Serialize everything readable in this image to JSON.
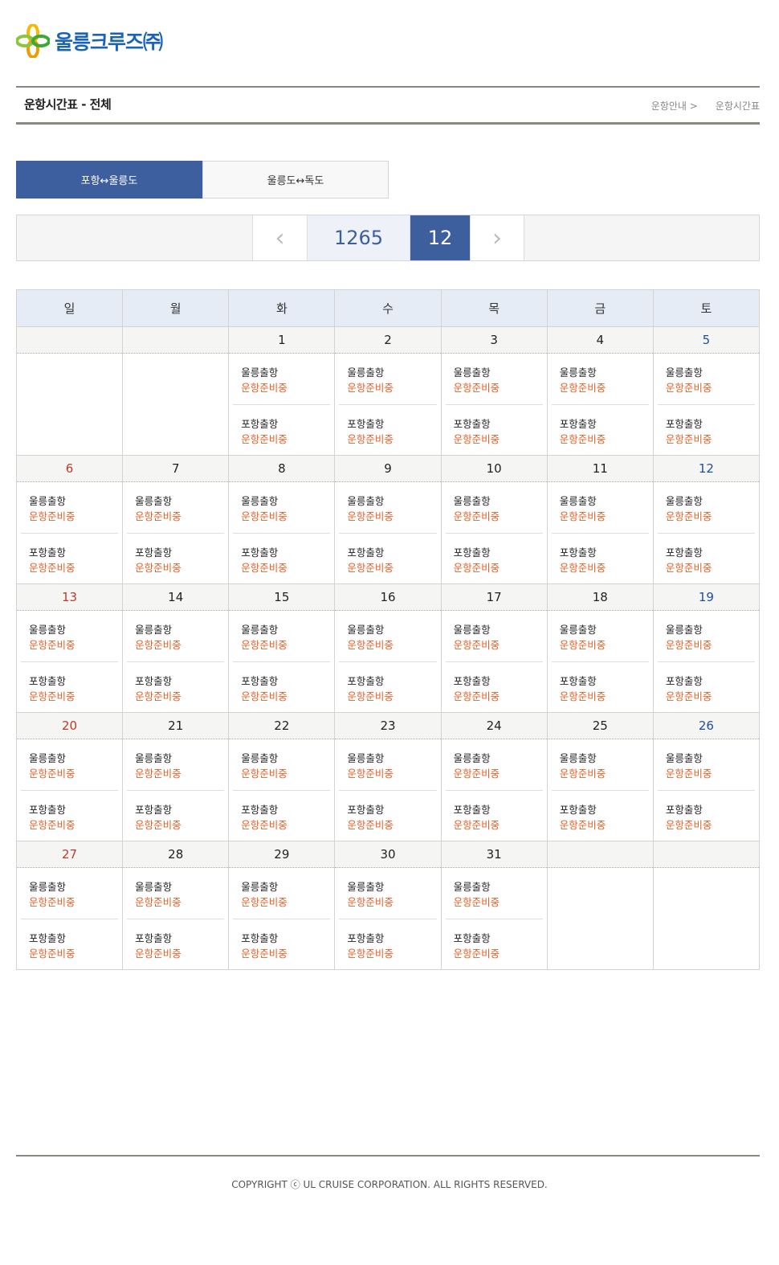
{
  "header": {
    "logo_text": "울릉크루즈㈜",
    "page_title": "운항시간표 - 전체",
    "breadcrumb": [
      "운항안내 >",
      "운항시간표"
    ]
  },
  "tabs": [
    {
      "label": "포항↔울릉도",
      "active": true
    },
    {
      "label": "울릉도↔독도",
      "active": false
    }
  ],
  "nav": {
    "prev_icon": "chevron-left-icon",
    "year": "1265",
    "month": "12",
    "next_icon": "chevron-right-icon"
  },
  "colors": {
    "primary": "#3d5f9e",
    "sunday": "#c0392b",
    "saturday": "#1e4fa0",
    "status": "#e0622a"
  },
  "calendar": {
    "weekdays": [
      "일",
      "월",
      "화",
      "수",
      "목",
      "금",
      "토"
    ],
    "weeks": [
      [
        null,
        null,
        {
          "d": "1",
          "t": [
            [
              "울릉출항",
              "운항준비중"
            ],
            [
              "포항출항",
              "운항준비중"
            ]
          ]
        },
        {
          "d": "2",
          "t": [
            [
              "울릉출항",
              "운항준비중"
            ],
            [
              "포항출항",
              "운항준비중"
            ]
          ]
        },
        {
          "d": "3",
          "t": [
            [
              "울릉출항",
              "운항준비중"
            ],
            [
              "포항출항",
              "운항준비중"
            ]
          ]
        },
        {
          "d": "4",
          "t": [
            [
              "울릉출항",
              "운항준비중"
            ],
            [
              "포항출항",
              "운항준비중"
            ]
          ]
        },
        {
          "d": "5",
          "t": [
            [
              "울릉출항",
              "운항준비중"
            ],
            [
              "포항출항",
              "운항준비중"
            ]
          ]
        }
      ],
      [
        {
          "d": "6",
          "t": [
            [
              "울릉출항",
              "운항준비중"
            ],
            [
              "포항출항",
              "운항준비중"
            ]
          ]
        },
        {
          "d": "7",
          "t": [
            [
              "울릉출항",
              "운항준비중"
            ],
            [
              "포항출항",
              "운항준비중"
            ]
          ]
        },
        {
          "d": "8",
          "t": [
            [
              "울릉출항",
              "운항준비중"
            ],
            [
              "포항출항",
              "운항준비중"
            ]
          ]
        },
        {
          "d": "9",
          "t": [
            [
              "울릉출항",
              "운항준비중"
            ],
            [
              "포항출항",
              "운항준비중"
            ]
          ]
        },
        {
          "d": "10",
          "t": [
            [
              "울릉출항",
              "운항준비중"
            ],
            [
              "포항출항",
              "운항준비중"
            ]
          ]
        },
        {
          "d": "11",
          "t": [
            [
              "울릉출항",
              "운항준비중"
            ],
            [
              "포항출항",
              "운항준비중"
            ]
          ]
        },
        {
          "d": "12",
          "t": [
            [
              "울릉출항",
              "운항준비중"
            ],
            [
              "포항출항",
              "운항준비중"
            ]
          ]
        }
      ],
      [
        {
          "d": "13",
          "t": [
            [
              "울릉출항",
              "운항준비중"
            ],
            [
              "포항출항",
              "운항준비중"
            ]
          ]
        },
        {
          "d": "14",
          "t": [
            [
              "울릉출항",
              "운항준비중"
            ],
            [
              "포항출항",
              "운항준비중"
            ]
          ]
        },
        {
          "d": "15",
          "t": [
            [
              "울릉출항",
              "운항준비중"
            ],
            [
              "포항출항",
              "운항준비중"
            ]
          ]
        },
        {
          "d": "16",
          "t": [
            [
              "울릉출항",
              "운항준비중"
            ],
            [
              "포항출항",
              "운항준비중"
            ]
          ]
        },
        {
          "d": "17",
          "t": [
            [
              "울릉출항",
              "운항준비중"
            ],
            [
              "포항출항",
              "운항준비중"
            ]
          ]
        },
        {
          "d": "18",
          "t": [
            [
              "울릉출항",
              "운항준비중"
            ],
            [
              "포항출항",
              "운항준비중"
            ]
          ]
        },
        {
          "d": "19",
          "t": [
            [
              "울릉출항",
              "운항준비중"
            ],
            [
              "포항출항",
              "운항준비중"
            ]
          ]
        }
      ],
      [
        {
          "d": "20",
          "t": [
            [
              "울릉출항",
              "운항준비중"
            ],
            [
              "포항출항",
              "운항준비중"
            ]
          ]
        },
        {
          "d": "21",
          "t": [
            [
              "울릉출항",
              "운항준비중"
            ],
            [
              "포항출항",
              "운항준비중"
            ]
          ]
        },
        {
          "d": "22",
          "t": [
            [
              "울릉출항",
              "운항준비중"
            ],
            [
              "포항출항",
              "운항준비중"
            ]
          ]
        },
        {
          "d": "23",
          "t": [
            [
              "울릉출항",
              "운항준비중"
            ],
            [
              "포항출항",
              "운항준비중"
            ]
          ]
        },
        {
          "d": "24",
          "t": [
            [
              "울릉출항",
              "운항준비중"
            ],
            [
              "포항출항",
              "운항준비중"
            ]
          ]
        },
        {
          "d": "25",
          "t": [
            [
              "울릉출항",
              "운항준비중"
            ],
            [
              "포항출항",
              "운항준비중"
            ]
          ]
        },
        {
          "d": "26",
          "t": [
            [
              "울릉출항",
              "운항준비중"
            ],
            [
              "포항출항",
              "운항준비중"
            ]
          ]
        }
      ],
      [
        {
          "d": "27",
          "t": [
            [
              "울릉출항",
              "운항준비중"
            ],
            [
              "포항출항",
              "운항준비중"
            ]
          ]
        },
        {
          "d": "28",
          "t": [
            [
              "울릉출항",
              "운항준비중"
            ],
            [
              "포항출항",
              "운항준비중"
            ]
          ]
        },
        {
          "d": "29",
          "t": [
            [
              "울릉출항",
              "운항준비중"
            ],
            [
              "포항출항",
              "운항준비중"
            ]
          ]
        },
        {
          "d": "30",
          "t": [
            [
              "울릉출항",
              "운항준비중"
            ],
            [
              "포항출항",
              "운항준비중"
            ]
          ]
        },
        {
          "d": "31",
          "t": [
            [
              "울릉출항",
              "운항준비중"
            ],
            [
              "포항출항",
              "운항준비중"
            ]
          ]
        },
        null,
        null
      ]
    ]
  },
  "footer": {
    "copyright": "COPYRIGHT ⓒ UL CRUISE CORPORATION. ALL RIGHTS RESERVED."
  }
}
